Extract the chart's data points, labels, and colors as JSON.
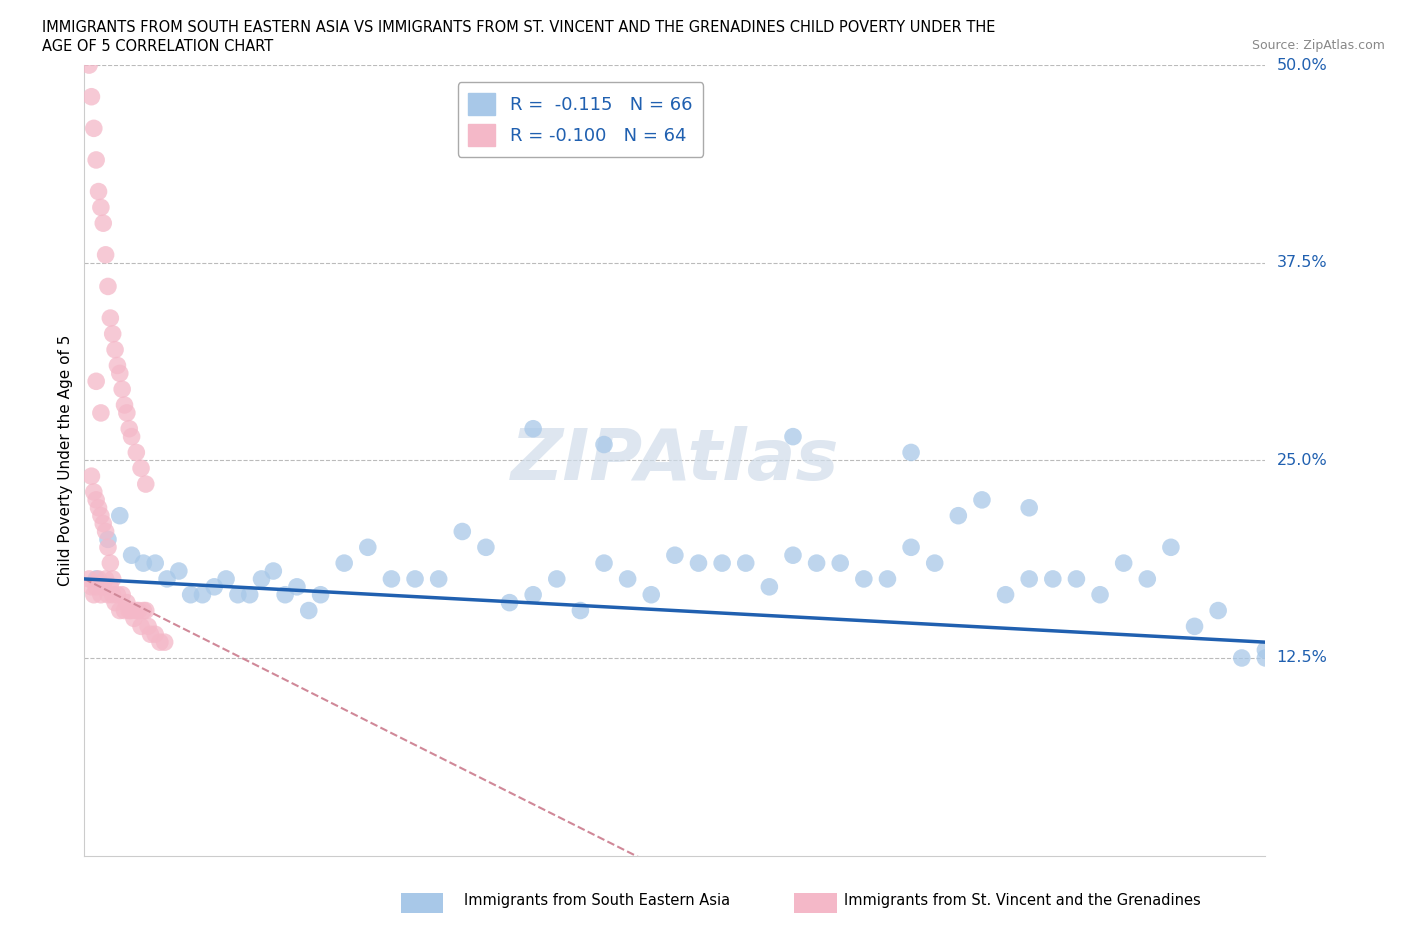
{
  "title_line1": "IMMIGRANTS FROM SOUTH EASTERN ASIA VS IMMIGRANTS FROM ST. VINCENT AND THE GRENADINES CHILD POVERTY UNDER THE",
  "title_line2": "AGE OF 5 CORRELATION CHART",
  "source": "Source: ZipAtlas.com",
  "ylabel": "Child Poverty Under the Age of 5",
  "ytick_labels": [
    "50.0%",
    "37.5%",
    "25.0%",
    "12.5%"
  ],
  "ytick_values": [
    0.5,
    0.375,
    0.25,
    0.125
  ],
  "color_blue": "#a8c8e8",
  "color_pink": "#f4b8c8",
  "line_color_blue": "#2060b0",
  "legend_r1": "R =  -0.115   N = 66",
  "legend_r2": "R = -0.100   N = 64",
  "label_blue": "Immigrants from South Eastern Asia",
  "label_pink": "Immigrants from St. Vincent and the Grenadines",
  "watermark_color": "#d0dcea",
  "blue_x": [
    0.005,
    0.01,
    0.015,
    0.02,
    0.025,
    0.03,
    0.035,
    0.04,
    0.045,
    0.05,
    0.055,
    0.06,
    0.065,
    0.07,
    0.075,
    0.08,
    0.085,
    0.09,
    0.095,
    0.1,
    0.11,
    0.12,
    0.13,
    0.14,
    0.15,
    0.16,
    0.17,
    0.18,
    0.19,
    0.2,
    0.21,
    0.22,
    0.23,
    0.24,
    0.25,
    0.26,
    0.27,
    0.28,
    0.29,
    0.3,
    0.31,
    0.32,
    0.33,
    0.34,
    0.35,
    0.36,
    0.37,
    0.38,
    0.39,
    0.4,
    0.41,
    0.42,
    0.43,
    0.44,
    0.45,
    0.46,
    0.47,
    0.48,
    0.49,
    0.5,
    0.19,
    0.22,
    0.3,
    0.35,
    0.4,
    0.5
  ],
  "blue_y": [
    0.175,
    0.2,
    0.215,
    0.19,
    0.185,
    0.185,
    0.175,
    0.18,
    0.165,
    0.165,
    0.17,
    0.175,
    0.165,
    0.165,
    0.175,
    0.18,
    0.165,
    0.17,
    0.155,
    0.165,
    0.185,
    0.195,
    0.175,
    0.175,
    0.175,
    0.205,
    0.195,
    0.16,
    0.165,
    0.175,
    0.155,
    0.185,
    0.175,
    0.165,
    0.19,
    0.185,
    0.185,
    0.185,
    0.17,
    0.19,
    0.185,
    0.185,
    0.175,
    0.175,
    0.195,
    0.185,
    0.215,
    0.225,
    0.165,
    0.175,
    0.175,
    0.175,
    0.165,
    0.185,
    0.175,
    0.195,
    0.145,
    0.155,
    0.125,
    0.125,
    0.27,
    0.26,
    0.265,
    0.255,
    0.22,
    0.13
  ],
  "pink_x": [
    0.002,
    0.003,
    0.004,
    0.005,
    0.006,
    0.007,
    0.008,
    0.009,
    0.01,
    0.011,
    0.012,
    0.013,
    0.014,
    0.015,
    0.016,
    0.017,
    0.018,
    0.019,
    0.02,
    0.021,
    0.022,
    0.023,
    0.024,
    0.025,
    0.026,
    0.027,
    0.028,
    0.03,
    0.032,
    0.034,
    0.002,
    0.003,
    0.004,
    0.005,
    0.006,
    0.007,
    0.008,
    0.009,
    0.01,
    0.011,
    0.012,
    0.013,
    0.014,
    0.015,
    0.016,
    0.017,
    0.018,
    0.019,
    0.02,
    0.022,
    0.024,
    0.026,
    0.003,
    0.004,
    0.005,
    0.006,
    0.007,
    0.008,
    0.009,
    0.01,
    0.011,
    0.012,
    0.005,
    0.007
  ],
  "pink_y": [
    0.175,
    0.17,
    0.165,
    0.17,
    0.175,
    0.165,
    0.17,
    0.175,
    0.165,
    0.17,
    0.165,
    0.16,
    0.165,
    0.155,
    0.165,
    0.155,
    0.16,
    0.155,
    0.155,
    0.15,
    0.155,
    0.155,
    0.145,
    0.155,
    0.155,
    0.145,
    0.14,
    0.14,
    0.135,
    0.135,
    0.5,
    0.48,
    0.46,
    0.44,
    0.42,
    0.41,
    0.4,
    0.38,
    0.36,
    0.34,
    0.33,
    0.32,
    0.31,
    0.305,
    0.295,
    0.285,
    0.28,
    0.27,
    0.265,
    0.255,
    0.245,
    0.235,
    0.24,
    0.23,
    0.225,
    0.22,
    0.215,
    0.21,
    0.205,
    0.195,
    0.185,
    0.175,
    0.3,
    0.28
  ]
}
